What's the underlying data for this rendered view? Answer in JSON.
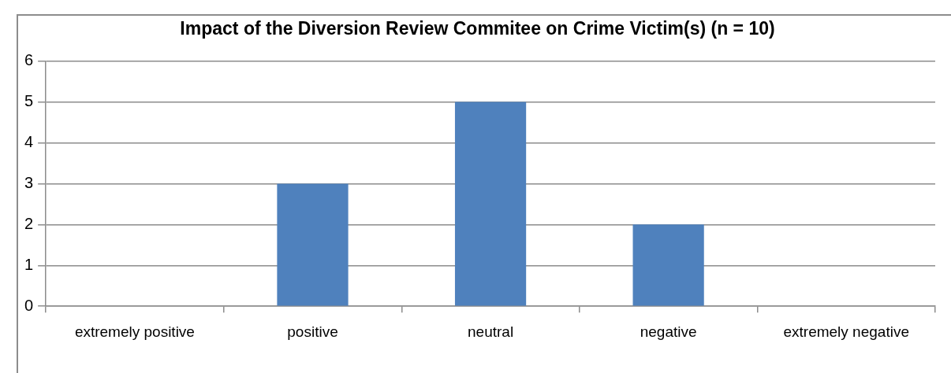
{
  "chart_data": {
    "type": "bar",
    "title": "Impact of the Diversion Review Commitee on Crime Victim(s) (n = 10)",
    "categories": [
      "extremely positive",
      "positive",
      "neutral",
      "negative",
      "extremely negative"
    ],
    "values": [
      0,
      3,
      5,
      2,
      0
    ],
    "color": "#4f81bd",
    "ylim": [
      0,
      6
    ],
    "yticks": [
      0,
      1,
      2,
      3,
      4,
      5,
      6
    ],
    "grid": "y",
    "legend": false
  }
}
